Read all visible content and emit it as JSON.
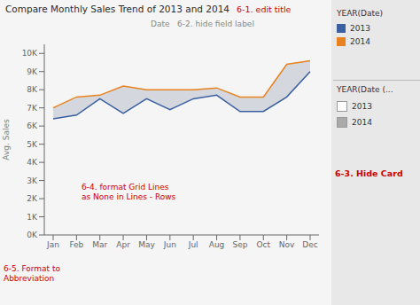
{
  "chart_data": {
    "type": "line",
    "title": "Compare Monthly Sales Trend of 2013 and 2014",
    "title_annotation": "6-1. edit title",
    "subtitle": "Date   6-2. hide field label",
    "ylabel": "Avg. Sales",
    "categories": [
      "Jan",
      "Feb",
      "Mar",
      "Apr",
      "May",
      "Jun",
      "Jul",
      "Aug",
      "Sep",
      "Oct",
      "Nov",
      "Dec"
    ],
    "series": [
      {
        "name": "2013",
        "color": "#3a5fa0",
        "values": [
          6400,
          6600,
          7500,
          6700,
          7500,
          6900,
          7500,
          7700,
          6800,
          6800,
          7600,
          9000
        ]
      },
      {
        "name": "2014",
        "color": "#e8821e",
        "values": [
          7000,
          7600,
          7700,
          8200,
          8000,
          8000,
          8000,
          8100,
          7600,
          7600,
          9400,
          9600
        ]
      }
    ],
    "area_color": "#c8cdd6",
    "ylim": [
      0,
      10500
    ],
    "yticks": [
      {
        "value": 0,
        "label": "0K"
      },
      {
        "value": 1000,
        "label": "1K"
      },
      {
        "value": 2000,
        "label": "2K"
      },
      {
        "value": 3000,
        "label": "3K"
      },
      {
        "value": 4000,
        "label": "4K"
      },
      {
        "value": 5000,
        "label": "5K"
      },
      {
        "value": 6000,
        "label": "6K"
      },
      {
        "value": 7000,
        "label": "7K"
      },
      {
        "value": 8000,
        "label": "8K"
      },
      {
        "value": 9000,
        "label": "9K"
      },
      {
        "value": 10000,
        "label": "10K"
      }
    ],
    "grid": false,
    "legend": "right",
    "legend_title": "YEAR(Date)",
    "legend2": {
      "title": "YEAR(Date (...",
      "entries": [
        {
          "name": "2013",
          "color": "#ffffff"
        },
        {
          "name": "2014",
          "color": "#aaaaaa"
        }
      ]
    },
    "annotations": [
      "6-3. Hide Card",
      "6-4. format Grid Lines\nas None in Lines - Rows",
      "6-5. Format to\nAbbreviation"
    ],
    "annotation_color": "#cc0000"
  }
}
